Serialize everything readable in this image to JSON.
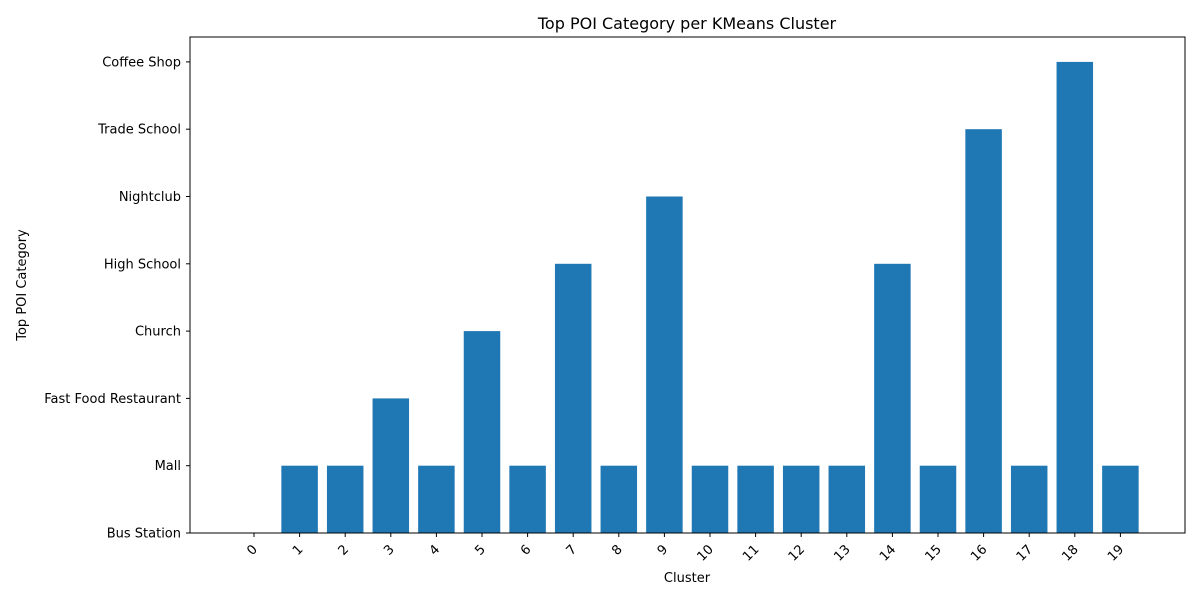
{
  "chart_data": {
    "type": "bar",
    "title": "Top POI Category per KMeans Cluster",
    "xlabel": "Cluster",
    "ylabel": "Top POI Category",
    "y_categories": [
      "Bus Station",
      "Mall",
      "Fast Food Restaurant",
      "Church",
      "High School",
      "Nightclub",
      "Trade School",
      "Coffee Shop"
    ],
    "categories": [
      "0",
      "1",
      "2",
      "3",
      "4",
      "5",
      "6",
      "7",
      "8",
      "9",
      "10",
      "11",
      "12",
      "13",
      "14",
      "15",
      "16",
      "17",
      "18",
      "19"
    ],
    "values": [
      "Bus Station",
      "Mall",
      "Mall",
      "Fast Food Restaurant",
      "Mall",
      "Church",
      "Mall",
      "High School",
      "Mall",
      "Nightclub",
      "Mall",
      "Mall",
      "Mall",
      "Mall",
      "High School",
      "Mall",
      "Trade School",
      "Mall",
      "Coffee Shop",
      "Mall"
    ],
    "bar_color": "#1f77b4",
    "grid": false,
    "x_tick_rotation": 45
  }
}
